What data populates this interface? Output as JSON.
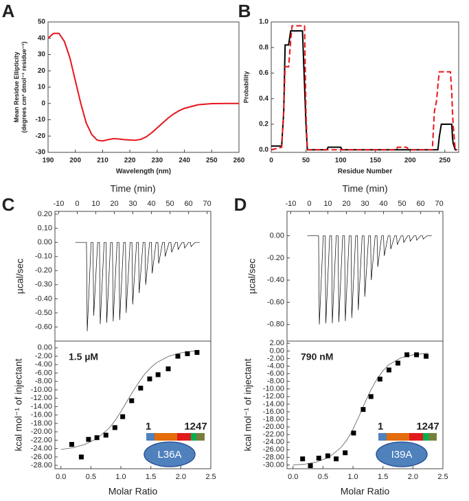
{
  "chart_data": [
    {
      "panel": "A",
      "type": "line",
      "x": [
        190,
        192,
        194,
        196,
        198,
        200,
        202,
        204,
        206,
        208,
        210,
        212,
        214,
        216,
        218,
        220,
        222,
        224,
        226,
        228,
        230,
        232,
        234,
        236,
        238,
        240,
        245,
        250,
        255,
        260
      ],
      "values": [
        40,
        43,
        43,
        38,
        28,
        14,
        0,
        -12,
        -19,
        -22.5,
        -23,
        -22.2,
        -21.6,
        -21.8,
        -22.2,
        -22.4,
        -22.6,
        -22,
        -20.5,
        -18,
        -15,
        -12,
        -9,
        -6.5,
        -4.5,
        -3,
        -0.8,
        -0.1,
        0,
        0
      ],
      "color": "#e8131b",
      "xlim": [
        190,
        260
      ],
      "ylim": [
        -30,
        50
      ],
      "xticks": [
        190,
        200,
        210,
        220,
        230,
        240,
        250,
        260
      ],
      "yticks": [
        -30,
        -20,
        -10,
        0,
        10,
        20,
        30,
        40,
        50
      ],
      "xlabel": "Wavelength (nm)",
      "ylabel": [
        "Mean Residue Ellipticity",
        "(degrees cm² dmol⁻¹ residue⁻¹)"
      ]
    },
    {
      "panel": "B",
      "type": "line",
      "x": [
        0,
        15,
        18,
        20,
        25,
        28,
        30,
        45,
        48,
        50,
        52,
        80,
        82,
        100,
        102,
        180,
        182,
        195,
        198,
        232,
        235,
        238,
        240,
        242,
        245,
        258,
        260,
        261,
        262,
        265,
        268
      ],
      "series": [
        {
          "color": "#000000",
          "values": [
            0.03,
            0.03,
            0.3,
            0.82,
            0.82,
            0.93,
            0.93,
            0.93,
            0.5,
            0.2,
            0,
            0,
            0.02,
            0.02,
            0,
            0,
            0,
            0,
            0,
            0,
            0,
            0,
            0,
            0.1,
            0.2,
            0.2,
            0.2,
            0.1,
            0.05,
            0,
            0
          ]
        },
        {
          "color": "#e8131b",
          "line_style": "dashed",
          "values": [
            0,
            0.02,
            0.3,
            0.65,
            0.65,
            0.85,
            0.97,
            0.97,
            0.97,
            0.3,
            0,
            0,
            0,
            0,
            0,
            0,
            0.02,
            0.02,
            0,
            0,
            0.3,
            0.38,
            0.5,
            0.61,
            0.61,
            0.61,
            0.45,
            0.3,
            0.2,
            0,
            0
          ]
        }
      ],
      "xlim": [
        0,
        270
      ],
      "ylim": [
        -0.02,
        1.0
      ],
      "xticks": [
        0,
        50,
        100,
        150,
        200,
        250
      ],
      "yticks": [
        {
          "value": 0,
          "label": "0.0"
        },
        0.2,
        0.4,
        0.6,
        0.8,
        {
          "value": 1,
          "label": "1.0"
        }
      ],
      "xlabel": "Residue Number",
      "ylabel": "Probability"
    },
    {
      "panel": "C",
      "type": "line",
      "xaxis": "top",
      "color": "#000000",
      "x": [
        -1,
        5,
        5.4,
        7.5,
        8.5,
        8.9,
        11,
        12,
        12.4,
        14.5,
        15.5,
        15.9,
        18,
        19,
        19.4,
        21.5,
        22.5,
        22.9,
        25,
        26,
        26.4,
        28.5,
        29.5,
        29.9,
        32,
        33,
        33.4,
        35.5,
        36.5,
        36.9,
        39,
        40,
        40.4,
        42.5,
        43.5,
        43.9,
        46,
        47,
        47.4,
        49.5,
        50.5,
        50.9,
        53,
        54,
        54.4,
        56.5,
        57.5,
        57.9,
        60,
        61,
        61.4,
        63.5,
        66
      ],
      "values": [
        0,
        0,
        -0.63,
        0,
        0,
        -0.52,
        0,
        0,
        -0.58,
        0,
        0,
        -0.57,
        0,
        0,
        -0.56,
        0,
        0,
        -0.55,
        0,
        0,
        -0.5,
        0,
        0,
        -0.44,
        0,
        0,
        -0.36,
        0,
        0,
        -0.3,
        0,
        0,
        -0.22,
        0,
        0,
        -0.15,
        0,
        0,
        -0.1,
        0,
        0,
        -0.07,
        0,
        0,
        -0.05,
        0,
        0,
        -0.04,
        0,
        0,
        -0.03,
        0,
        0
      ],
      "xlim": [
        -12,
        72
      ],
      "ylim": [
        -0.7,
        0.22
      ],
      "xticks": [
        -10,
        0,
        10,
        20,
        30,
        40,
        50,
        60,
        70
      ],
      "yticks": [
        {
          "value": 0.2,
          "label": "0.20"
        },
        {
          "value": 0.1,
          "label": "0.10"
        },
        {
          "value": 0,
          "label": "0.00"
        },
        {
          "value": -0.1,
          "label": "-0.10"
        },
        {
          "value": -0.2,
          "label": "-0.20"
        },
        {
          "value": -0.3,
          "label": "-0.30"
        },
        {
          "value": -0.4,
          "label": "-0.40"
        },
        {
          "value": -0.5,
          "label": "-0.50"
        },
        {
          "value": -0.6,
          "label": "-0.60"
        }
      ],
      "xlabel": "Time (min)",
      "ylabel": "µcal/sec"
    },
    {
      "type": "scatter",
      "color": "#000000",
      "x": [
        0.18,
        0.34,
        0.46,
        0.6,
        0.75,
        0.9,
        1.03,
        1.18,
        1.33,
        1.48,
        1.62,
        1.79,
        1.95,
        2.11,
        2.27
      ],
      "values": [
        -23,
        -26,
        -21.8,
        -21.4,
        -20.8,
        -19,
        -16.4,
        -12.6,
        -9.6,
        -7.4,
        -6.4,
        -5,
        -2,
        -1.4,
        -1.1
      ],
      "fit": {
        "color": "#555555",
        "x": [
          0,
          0.2,
          0.4,
          0.6,
          0.8,
          0.9,
          1.0,
          1.1,
          1.2,
          1.3,
          1.4,
          1.5,
          1.6,
          1.8,
          2.0,
          2.25
        ],
        "values": [
          -24.2,
          -23.8,
          -23,
          -21.6,
          -19.2,
          -17.4,
          -15.2,
          -12.8,
          -10.4,
          -8.2,
          -6.2,
          -4.7,
          -3.5,
          -2,
          -1.2,
          -0.7
        ]
      },
      "xlim": [
        -0.1,
        2.5
      ],
      "ylim": [
        -28.8,
        1.6
      ],
      "xticks": [
        {
          "value": 0,
          "label": "0.0"
        },
        0.5,
        {
          "value": 1,
          "label": "1.0"
        },
        1.5,
        {
          "value": 2,
          "label": "2.0"
        },
        2.5
      ],
      "yticks": [
        {
          "value": 0,
          "label": "0.00"
        },
        {
          "value": -2,
          "label": "-2.00"
        },
        {
          "value": -4,
          "label": "-4.00"
        },
        {
          "value": -6,
          "label": "-6.00"
        },
        {
          "value": -8,
          "label": "-8.00"
        },
        {
          "value": -10,
          "label": "-10.00"
        },
        {
          "value": -12,
          "label": "-12.00"
        },
        {
          "value": -14,
          "label": "-14.00"
        },
        {
          "value": -16,
          "label": "-16.00"
        },
        {
          "value": -18,
          "label": "-18.00"
        },
        {
          "value": -20,
          "label": "-20.00"
        },
        {
          "value": -22,
          "label": "-22.00"
        },
        {
          "value": -24,
          "label": "-24.00"
        },
        {
          "value": -26,
          "label": "-26.00"
        },
        {
          "value": -28,
          "label": "-28.00"
        }
      ],
      "xlabel": "Molar Ratio",
      "ylabel": "kcal mol⁻¹ of injectant",
      "annotation": "1.5 µM",
      "inset": {
        "start": "1",
        "end": "1247",
        "mutant": "L36A"
      }
    },
    {
      "panel": "D",
      "type": "line",
      "xaxis": "top",
      "color": "#000000",
      "x": [
        -1,
        5,
        5.4,
        7.5,
        8.5,
        8.9,
        11,
        12,
        12.4,
        14.5,
        15.5,
        15.9,
        18,
        19,
        19.4,
        21.5,
        22.5,
        22.9,
        25,
        26,
        26.4,
        28.5,
        29.5,
        29.9,
        32,
        33,
        33.4,
        35.5,
        36.5,
        36.9,
        39,
        40,
        40.4,
        42.5,
        43.5,
        43.9,
        46,
        47,
        47.4,
        49.5,
        50.5,
        50.9,
        53,
        54,
        54.4,
        56.5,
        57.5,
        57.9,
        60,
        61,
        61.4,
        63.5,
        66
      ],
      "values": [
        0,
        0,
        -0.8,
        0,
        0,
        -0.79,
        0,
        0,
        -0.79,
        0,
        0,
        -0.78,
        0,
        0,
        -0.77,
        0,
        0,
        -0.74,
        0,
        0,
        -0.67,
        0,
        0,
        -0.55,
        0,
        0,
        -0.4,
        0,
        0,
        -0.28,
        0,
        0,
        -0.18,
        0,
        0,
        -0.12,
        0,
        0,
        -0.08,
        0,
        0,
        -0.06,
        0,
        0,
        -0.05,
        0,
        0,
        -0.04,
        0,
        0,
        -0.03,
        0,
        0
      ],
      "xlim": [
        -12,
        72
      ],
      "ylim": [
        -0.95,
        0.22
      ],
      "xticks": [
        -10,
        0,
        10,
        20,
        30,
        40,
        50,
        60,
        70
      ],
      "yticks": [
        {
          "value": 0,
          "label": "0.00"
        },
        {
          "value": -0.2,
          "label": "-0.20"
        },
        {
          "value": -0.4,
          "label": "-0.40"
        },
        {
          "value": -0.6,
          "label": "-0.60"
        },
        {
          "value": -0.8,
          "label": "-0.80"
        }
      ],
      "xlabel": "Time (min)",
      "ylabel": "µcal/sec"
    },
    {
      "type": "scatter",
      "color": "#000000",
      "x": [
        0.16,
        0.29,
        0.43,
        0.58,
        0.72,
        0.87,
        1.01,
        1.17,
        1.3,
        1.45,
        1.6,
        1.75,
        1.9,
        2.06,
        2.22
      ],
      "values": [
        -28.4,
        -30.2,
        -28.2,
        -27.6,
        -28.4,
        -26.8,
        -21.6,
        -15.4,
        -12,
        -7.4,
        -5,
        -3.2,
        -1,
        -1,
        -1.4
      ],
      "fit": {
        "color": "#555555",
        "x": [
          0,
          0.2,
          0.4,
          0.6,
          0.8,
          0.9,
          1.0,
          1.1,
          1.2,
          1.3,
          1.4,
          1.5,
          1.6,
          1.8,
          2.0,
          2.25
        ],
        "values": [
          -30,
          -29.8,
          -29.2,
          -28,
          -25.4,
          -23.4,
          -20.6,
          -17.2,
          -13.6,
          -10.2,
          -7.4,
          -5.2,
          -3.6,
          -1.8,
          -1,
          -0.6
        ]
      },
      "xlim": [
        -0.1,
        2.5
      ],
      "ylim": [
        -31,
        2.6
      ],
      "xticks": [
        {
          "value": 0,
          "label": "0.0"
        },
        0.5,
        {
          "value": 1,
          "label": "1.0"
        },
        1.5,
        {
          "value": 2,
          "label": "2.0"
        },
        2.5
      ],
      "yticks": [
        {
          "value": 2,
          "label": "2.00"
        },
        {
          "value": 0,
          "label": "0.00"
        },
        {
          "value": -2,
          "label": "-2.00"
        },
        {
          "value": -4,
          "label": "-4.00"
        },
        {
          "value": -6,
          "label": "-6.00"
        },
        {
          "value": -8,
          "label": "-8.00"
        },
        {
          "value": -10,
          "label": "-10.00"
        },
        {
          "value": -12,
          "label": "-12.00"
        },
        {
          "value": -14,
          "label": "-14.00"
        },
        {
          "value": -16,
          "label": "-16.00"
        },
        {
          "value": -18,
          "label": "-18.00"
        },
        {
          "value": -20,
          "label": "-20.00"
        },
        {
          "value": -22,
          "label": "-22.00"
        },
        {
          "value": -24,
          "label": "-24.00"
        },
        {
          "value": -26,
          "label": "-26.00"
        },
        {
          "value": -28,
          "label": "-28.00"
        },
        {
          "value": -30,
          "label": "-30.00"
        }
      ],
      "xlabel": "Molar Ratio",
      "ylabel": "kcal mol⁻¹ of injectant",
      "annotation": "790 nM",
      "inset": {
        "start": "1",
        "end": "1247",
        "mutant": "I39A"
      }
    }
  ]
}
